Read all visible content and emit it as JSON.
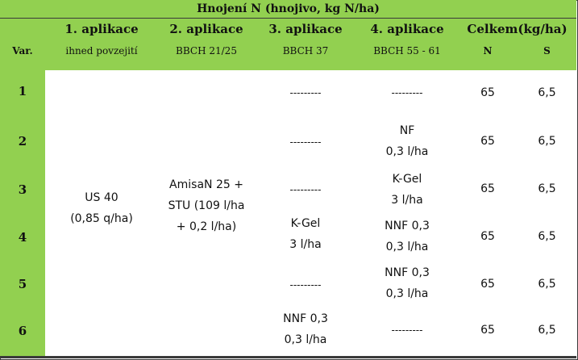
{
  "title": "Hnojení N (hnojivo, kg N/ha)",
  "header": {
    "var": "Var.",
    "app1": "1. aplikace",
    "app1_sub": "ihned povzejití",
    "app2": "2. aplikace",
    "app2_sub": "BBCH 21/25",
    "app3": "3. aplikace",
    "app3_sub": "BBCH 37",
    "app4": "4. aplikace",
    "app4_sub": "BBCH 55 - 61",
    "total": "Celkem(kg/ha)",
    "total_n": "N",
    "total_s": "S"
  },
  "app1_merged": [
    "US 40",
    "(0,85 q/ha)"
  ],
  "app2_merged": [
    "AmisaN 25 +",
    "STU (109 l/ha",
    "+ 0,2 l/ha)"
  ],
  "app3_merged_45": [
    "K-Gel",
    "3 l/ha"
  ],
  "rows": [
    {
      "var": "1",
      "app3": [
        "---------"
      ],
      "app4": [
        "---------"
      ],
      "n": "65",
      "s": "6,5"
    },
    {
      "var": "2",
      "app3": [
        "---------"
      ],
      "app4": [
        "NF",
        "0,3 l/ha"
      ],
      "n": "65",
      "s": "6,5"
    },
    {
      "var": "3",
      "app3": [
        "---------"
      ],
      "app4": [
        "K-Gel",
        "3 l/ha"
      ],
      "n": "65",
      "s": "6,5"
    },
    {
      "var": "4",
      "app3": [],
      "app4": [
        "NNF 0,3",
        "0,3 l/ha"
      ],
      "n": "65",
      "s": "6,5"
    },
    {
      "var": "5",
      "app3": [
        "---------"
      ],
      "app4": [
        "NNF 0,3",
        "0,3 l/ha"
      ],
      "n": "65",
      "s": "6,5"
    },
    {
      "var": "6",
      "app3": [
        "NNF 0,3",
        "0,3 l/ha"
      ],
      "app4": [
        "---------"
      ],
      "n": "65",
      "s": "6,5"
    }
  ]
}
